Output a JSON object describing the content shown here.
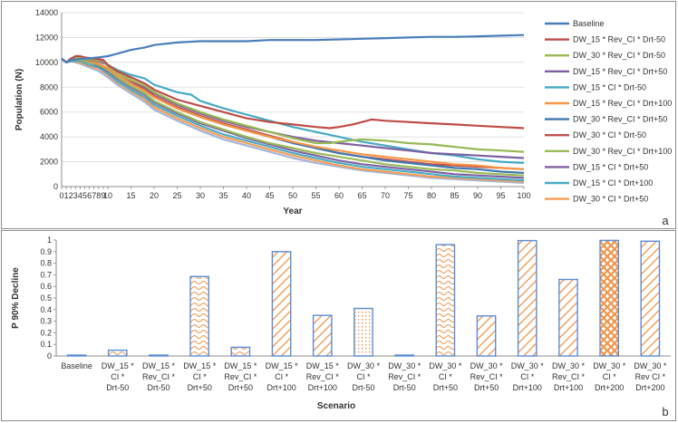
{
  "chart_data": [
    {
      "type": "line",
      "panel_label": "a",
      "xlabel": "Year",
      "ylabel": "Population (N)",
      "xlim": [
        0,
        100
      ],
      "ylim": [
        0,
        14000
      ],
      "xticks": [
        0,
        1,
        2,
        3,
        4,
        5,
        6,
        7,
        8,
        9,
        10,
        15,
        20,
        25,
        30,
        35,
        40,
        45,
        50,
        55,
        60,
        65,
        70,
        75,
        80,
        85,
        90,
        95,
        100
      ],
      "yticks": [
        0,
        2000,
        4000,
        6000,
        8000,
        10000,
        12000,
        14000
      ],
      "legend_position": "right",
      "series": [
        {
          "name": "Baseline",
          "color": "#4a7ebb",
          "x": [
            0,
            1,
            2,
            5,
            8,
            10,
            12,
            15,
            18,
            20,
            25,
            30,
            35,
            40,
            45,
            50,
            55,
            60,
            65,
            70,
            75,
            80,
            85,
            90,
            95,
            100
          ],
          "y": [
            10300,
            10000,
            10200,
            10300,
            10400,
            10500,
            10700,
            11000,
            11200,
            11400,
            11600,
            11700,
            11700,
            11700,
            11800,
            11800,
            11800,
            11850,
            11900,
            11950,
            12000,
            12050,
            12050,
            12100,
            12150,
            12200
          ]
        },
        {
          "name": "DW_15 * Rev_CI * Drt-50",
          "color": "#be4b48",
          "x": [
            0,
            1,
            2,
            3,
            4,
            5,
            7,
            9,
            10,
            12,
            15,
            18,
            20,
            25,
            30,
            35,
            40,
            45,
            50,
            55,
            58,
            60,
            63,
            65,
            67,
            70,
            75,
            80,
            85,
            90,
            95,
            100
          ],
          "y": [
            10300,
            10000,
            10300,
            10500,
            10500,
            10400,
            10300,
            10200,
            9800,
            9300,
            8800,
            8300,
            7800,
            7000,
            6500,
            6000,
            5500,
            5200,
            5000,
            4800,
            4700,
            4800,
            5000,
            5200,
            5400,
            5300,
            5200,
            5100,
            5000,
            4900,
            4800,
            4700
          ]
        },
        {
          "name": "DW_30 * Rev_CI * Drt-50",
          "color": "#98b954",
          "x": [
            0,
            1,
            2,
            3,
            4,
            5,
            7,
            9,
            10,
            12,
            15,
            18,
            20,
            25,
            30,
            35,
            40,
            45,
            50,
            55,
            58,
            60,
            62,
            65,
            70,
            75,
            80,
            85,
            90,
            95,
            100
          ],
          "y": [
            10300,
            10000,
            10300,
            10400,
            10400,
            10300,
            10200,
            10100,
            9700,
            9200,
            8600,
            8100,
            7600,
            6700,
            6000,
            5400,
            4900,
            4400,
            3900,
            3500,
            3500,
            3600,
            3700,
            3800,
            3700,
            3500,
            3400,
            3200,
            3000,
            2900,
            2800
          ]
        },
        {
          "name": "DW_15 * Rev_CI * Drt+50",
          "color": "#7d60a0",
          "x": [
            0,
            1,
            2,
            4,
            6,
            8,
            10,
            12,
            15,
            18,
            20,
            25,
            30,
            35,
            40,
            45,
            50,
            55,
            60,
            65,
            70,
            75,
            80,
            85,
            90,
            95,
            100
          ],
          "y": [
            10300,
            10000,
            10300,
            10400,
            10200,
            10100,
            9800,
            9300,
            8600,
            8000,
            7500,
            6600,
            5900,
            5300,
            4800,
            4400,
            4000,
            3700,
            3500,
            3300,
            3100,
            2900,
            2700,
            2600,
            2500,
            2400,
            2300
          ]
        },
        {
          "name": "DW_15 * CI * Drt-50",
          "color": "#46aac5",
          "x": [
            0,
            1,
            2,
            4,
            6,
            8,
            10,
            12,
            15,
            18,
            20,
            25,
            28,
            30,
            35,
            40,
            45,
            50,
            55,
            60,
            65,
            70,
            75,
            80,
            85,
            90,
            95,
            100
          ],
          "y": [
            10300,
            10000,
            10200,
            10300,
            10200,
            10100,
            9800,
            9400,
            9000,
            8700,
            8200,
            7600,
            7400,
            6900,
            6300,
            5800,
            5300,
            4800,
            4400,
            4000,
            3600,
            3300,
            3000,
            2700,
            2500,
            2200,
            2000,
            1900
          ]
        },
        {
          "name": "DW_15 * Rev_CI * Drt+100",
          "color": "#f79646",
          "x": [
            0,
            1,
            2,
            4,
            6,
            8,
            10,
            12,
            15,
            18,
            20,
            25,
            30,
            35,
            40,
            45,
            50,
            55,
            60,
            65,
            70,
            75,
            80,
            85,
            90,
            95,
            100
          ],
          "y": [
            10300,
            10000,
            10200,
            10300,
            10100,
            9900,
            9500,
            9000,
            8300,
            7700,
            7200,
            6300,
            5600,
            5000,
            4500,
            4000,
            3600,
            3200,
            2900,
            2600,
            2400,
            2200,
            2000,
            1800,
            1700,
            1500,
            1400
          ]
        },
        {
          "name": "DW_30 * Rev_CI * Drt+50",
          "color": "#3f78b0",
          "x": [
            0,
            1,
            2,
            4,
            6,
            8,
            10,
            12,
            15,
            18,
            20,
            25,
            30,
            35,
            40,
            45,
            50,
            55,
            60,
            65,
            70,
            75,
            80,
            85,
            90,
            95,
            100
          ],
          "y": [
            10300,
            10000,
            10200,
            10300,
            10100,
            9900,
            9500,
            9000,
            8300,
            7700,
            7200,
            6300,
            5600,
            5000,
            4500,
            4000,
            3500,
            3100,
            2700,
            2400,
            2100,
            1900,
            1700,
            1500,
            1400,
            1200,
            1100
          ]
        },
        {
          "name": "DW_30 * CI * Drt-50",
          "color": "#c0504d",
          "x": [
            0,
            1,
            2,
            4,
            6,
            8,
            10,
            12,
            15,
            18,
            20,
            25,
            30,
            35,
            40,
            45,
            50,
            55,
            60,
            65,
            70,
            75,
            80,
            85,
            90,
            95,
            100
          ],
          "y": [
            10300,
            10000,
            10200,
            10300,
            10100,
            9900,
            9500,
            9000,
            8400,
            7900,
            7300,
            6400,
            5700,
            5100,
            4600,
            4100,
            3600,
            3100,
            2700,
            2400,
            2200,
            2000,
            1800,
            1700,
            1600,
            1500,
            1400
          ]
        },
        {
          "name": "DW_30 * Rev_CI * Drt+100",
          "color": "#9bbb59",
          "x": [
            0,
            1,
            2,
            4,
            6,
            8,
            10,
            12,
            15,
            18,
            20,
            25,
            30,
            35,
            40,
            45,
            50,
            55,
            60,
            65,
            70,
            75,
            80,
            85,
            90,
            95,
            100
          ],
          "y": [
            10300,
            10000,
            10200,
            10200,
            10000,
            9800,
            9400,
            8800,
            8100,
            7500,
            6900,
            6000,
            5200,
            4600,
            4000,
            3500,
            3100,
            2700,
            2400,
            2100,
            1800,
            1600,
            1400,
            1300,
            1100,
            1000,
            900
          ]
        },
        {
          "name": "DW_15 * CI * Drt+50",
          "color": "#8064a2",
          "x": [
            0,
            1,
            2,
            4,
            6,
            8,
            10,
            12,
            15,
            18,
            20,
            25,
            30,
            35,
            40,
            45,
            50,
            55,
            60,
            65,
            70,
            75,
            80,
            85,
            90,
            95,
            100
          ],
          "y": [
            10300,
            10000,
            10200,
            10200,
            10000,
            9700,
            9300,
            8700,
            8000,
            7400,
            6800,
            5900,
            5100,
            4500,
            3900,
            3400,
            2900,
            2500,
            2100,
            1800,
            1600,
            1400,
            1200,
            1000,
            900,
            800,
            700
          ]
        },
        {
          "name": "DW_15 * CI * Drt+100",
          "color": "#4bacc6",
          "x": [
            0,
            1,
            2,
            4,
            6,
            8,
            10,
            12,
            15,
            18,
            20,
            25,
            30,
            35,
            40,
            45,
            50,
            55,
            60,
            65,
            70,
            75,
            80,
            85,
            90,
            95,
            100
          ],
          "y": [
            10300,
            10000,
            10100,
            10100,
            9800,
            9600,
            9100,
            8500,
            7800,
            7200,
            6600,
            5700,
            4900,
            4200,
            3700,
            3200,
            2700,
            2300,
            1900,
            1600,
            1400,
            1200,
            1000,
            800,
            700,
            600,
            500
          ]
        },
        {
          "name": "DW_30 * CI * Drt+50",
          "color": "#f59d56",
          "x": [
            0,
            1,
            2,
            4,
            6,
            8,
            10,
            12,
            15,
            18,
            20,
            25,
            30,
            35,
            40,
            45,
            50,
            55,
            60,
            65,
            70,
            75,
            80,
            85,
            90,
            95,
            100
          ],
          "y": [
            10300,
            10000,
            10100,
            10000,
            9700,
            9500,
            9000,
            8400,
            7700,
            7000,
            6400,
            5500,
            4700,
            4000,
            3500,
            3000,
            2500,
            2100,
            1700,
            1400,
            1200,
            1000,
            800,
            700,
            600,
            500,
            400
          ]
        },
        {
          "name": "",
          "color": "#a3b4d8",
          "x": [
            0,
            1,
            2,
            4,
            6,
            8,
            10,
            12,
            15,
            18,
            20,
            25,
            30,
            35,
            40,
            45,
            50,
            55,
            60,
            65,
            70,
            75,
            80,
            85,
            90,
            95,
            100
          ],
          "y": [
            10300,
            10000,
            10100,
            9900,
            9600,
            9300,
            8800,
            8200,
            7500,
            6800,
            6200,
            5300,
            4500,
            3800,
            3300,
            2800,
            2300,
            1900,
            1600,
            1300,
            1100,
            900,
            700,
            600,
            500,
            400,
            300
          ]
        }
      ]
    },
    {
      "type": "bar",
      "panel_label": "b",
      "xlabel": "Scenario",
      "ylabel": "P 90% Decline",
      "ylim": [
        0,
        1
      ],
      "yticks": [
        0,
        0.1,
        0.2,
        0.3,
        0.4,
        0.5,
        0.6,
        0.7,
        0.8,
        0.9,
        1
      ],
      "categories": [
        [
          "Baseline"
        ],
        [
          "DW_15 *",
          "CI *",
          "Drt-50"
        ],
        [
          "DW_15 *",
          "Rev_CI *",
          "Drt-50"
        ],
        [
          "DW_15 *",
          "CI *",
          "Drt+50"
        ],
        [
          "DW_15 *",
          "Rev_CI *",
          "Drt+50"
        ],
        [
          "DW_15 *",
          "CI *",
          "Drt+100"
        ],
        [
          "DW_15 *",
          "Rev_CI *",
          "Drt+100"
        ],
        [
          "DW_30 *",
          "CI *",
          "Drt-50"
        ],
        [
          "DW_30 *",
          "Rev_CI *",
          "Drt-50"
        ],
        [
          "DW_30 *",
          "CI *",
          "Drt+50"
        ],
        [
          "DW_30 *",
          "Rev_CI *",
          "Drt+50"
        ],
        [
          "DW_30 *",
          "CI *",
          "Drt+100"
        ],
        [
          "DW_30 *",
          "Rev_CI *",
          "Drt+100"
        ],
        [
          "DW_30 *",
          "CI *",
          "Drt+200"
        ],
        [
          "DW_30 *",
          "Rev CI *",
          "Drt+200"
        ]
      ],
      "values": [
        0.003,
        0.05,
        0.003,
        0.685,
        0.075,
        0.9,
        0.35,
        0.41,
        0.003,
        0.96,
        0.345,
        0.995,
        0.66,
        0.997,
        0.99
      ],
      "patterns": [
        "plain",
        "wave",
        "wave",
        "wave",
        "wave",
        "diag",
        "diag",
        "dots",
        "wave",
        "wave",
        "diag",
        "diag",
        "diag",
        "cross",
        "diag"
      ],
      "bar_border_color": "#5b8dd6",
      "hatch_color": "#f0954a"
    }
  ]
}
